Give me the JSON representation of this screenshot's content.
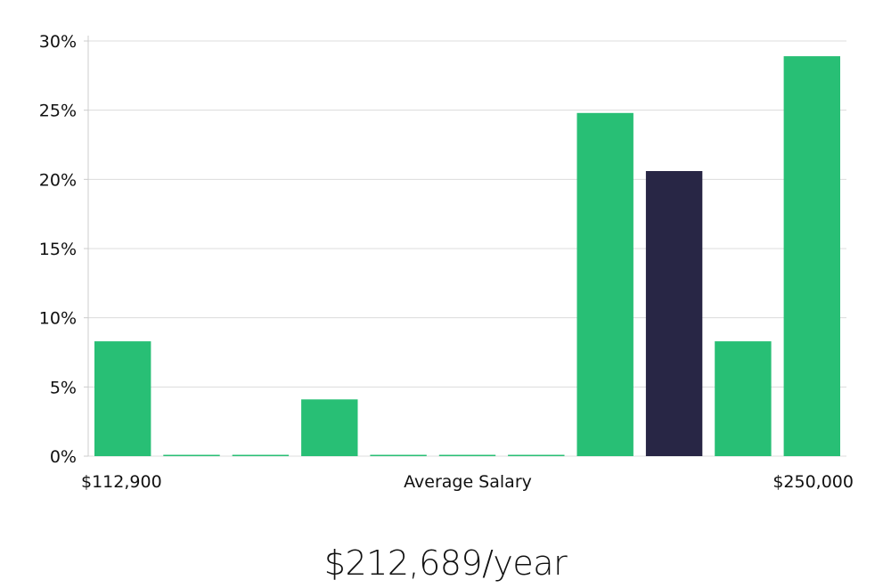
{
  "chart_data": {
    "type": "bar",
    "title": "",
    "xlabel": "",
    "ylabel": "",
    "y_unit": "%",
    "ylim": [
      0,
      30
    ],
    "yticks": [
      0,
      5,
      10,
      15,
      20,
      25,
      30
    ],
    "grid": true,
    "bar_color": "#28bf75",
    "highlight_color": "#282645",
    "highlight_index": 8,
    "values": [
      8.3,
      0,
      0,
      4.1,
      0,
      0,
      0,
      24.8,
      20.6,
      8.3,
      28.9
    ],
    "x_label_left": "$112,900",
    "x_label_center": "Average Salary",
    "x_label_right": "$250,000"
  },
  "headline": "$212,689/year",
  "colors": {
    "axis": "#cccccc",
    "grid": "#dcdcdc",
    "text": "#111111"
  }
}
